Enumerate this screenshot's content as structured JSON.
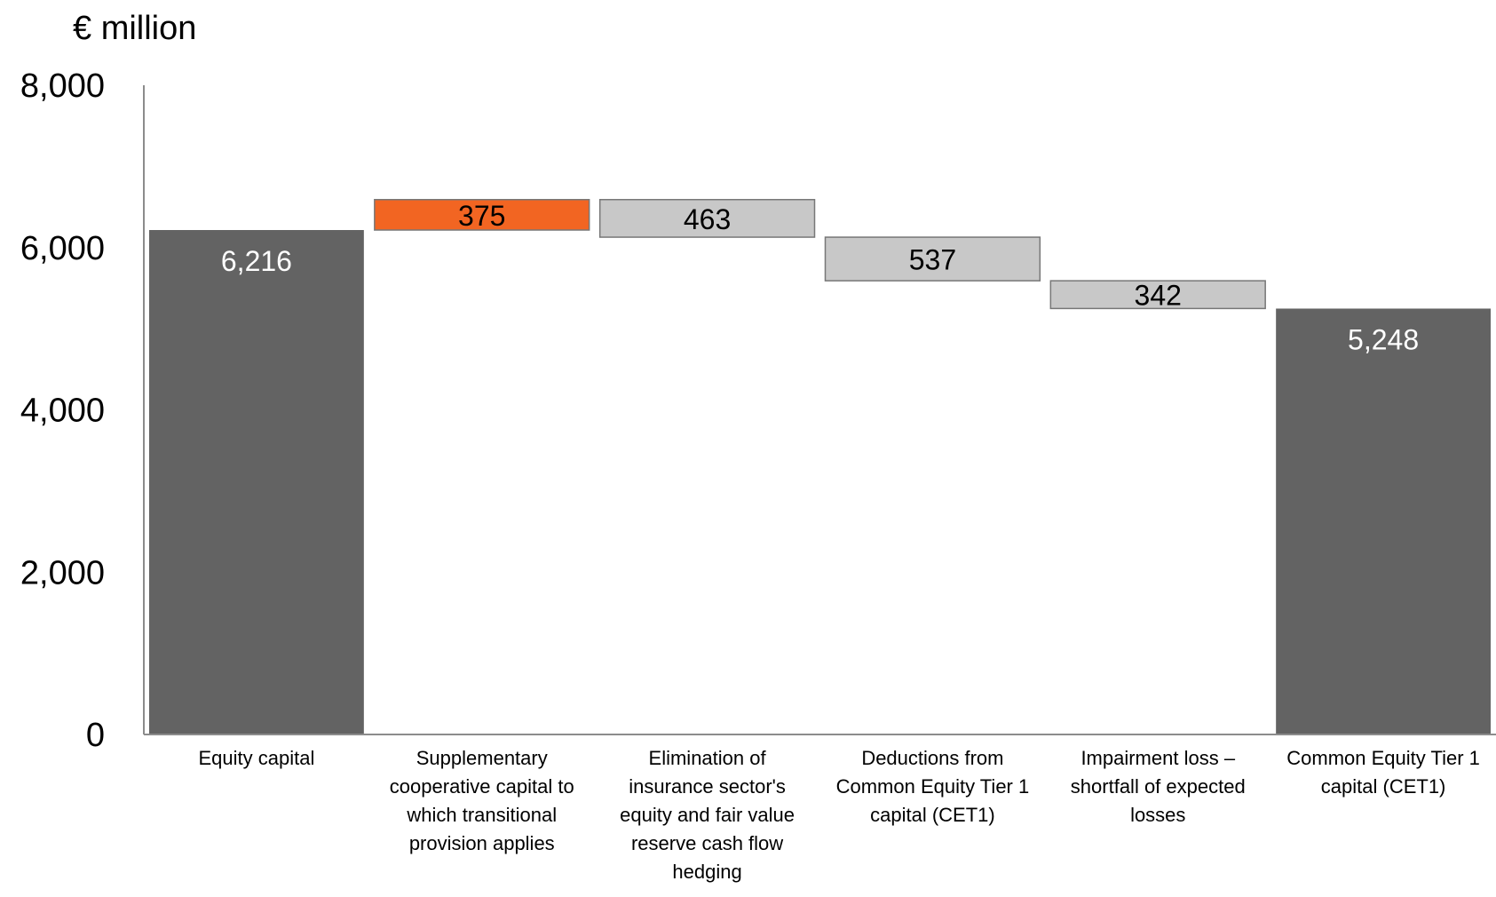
{
  "chart_data": {
    "type": "bar",
    "subtype": "waterfall",
    "unit_label": "€ million",
    "ylim": [
      0,
      8000
    ],
    "y_ticks": [
      "0",
      "2,000",
      "4,000",
      "6,000",
      "8,000"
    ],
    "y_tick_values": [
      0,
      2000,
      4000,
      6000,
      8000
    ],
    "grid": false,
    "bars": [
      {
        "category": [
          "Equity capital"
        ],
        "value": 6216,
        "base": 0,
        "top": 6216,
        "label": "6,216",
        "kind": "total",
        "color": "#636363"
      },
      {
        "category": [
          "Supplementary",
          "cooperative capital to",
          "which transitional",
          "provision applies"
        ],
        "value": 375,
        "base": 6216,
        "top": 6591,
        "label": "375",
        "kind": "increase",
        "color": "#f26522"
      },
      {
        "category": [
          "Elimination of",
          "insurance sector's",
          "equity and fair value",
          "reserve cash flow",
          "hedging"
        ],
        "value": -463,
        "base": 6128,
        "top": 6591,
        "label": "463",
        "kind": "decrease",
        "color": "#c8c8c8"
      },
      {
        "category": [
          "Deductions from",
          "Common Equity Tier 1",
          "capital (CET1)"
        ],
        "value": -537,
        "base": 5591,
        "top": 6128,
        "label": "537",
        "kind": "decrease",
        "color": "#c8c8c8"
      },
      {
        "category": [
          "Impairment loss –",
          "shortfall of expected",
          "losses"
        ],
        "value": -342,
        "base": 5249,
        "top": 5591,
        "label": "342",
        "kind": "decrease",
        "color": "#c8c8c8"
      },
      {
        "category": [
          "Common Equity Tier 1",
          "capital (CET1)"
        ],
        "value": 5248,
        "base": 0,
        "top": 5248,
        "label": "5,248",
        "kind": "total",
        "color": "#636363"
      }
    ]
  }
}
